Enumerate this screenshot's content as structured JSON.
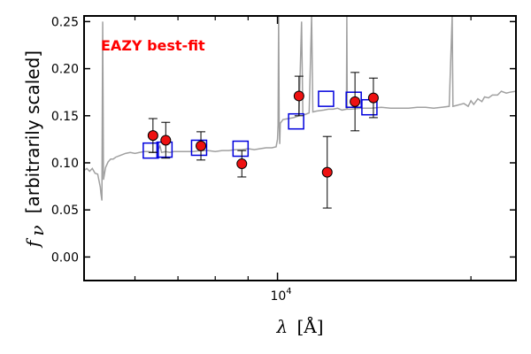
{
  "chart_data": {
    "type": "scatter",
    "annotation": "EAZY best-fit",
    "annotation_color": "#ff0000",
    "xlabel_symbol": "λ",
    "xlabel_unit": "[Å]",
    "ylabel_symbol": "f",
    "ylabel_subscript": "ν",
    "ylabel_text": "[arbitrarily scaled]",
    "x_scale": "log",
    "xlim": [
      5000,
      23500
    ],
    "ylim": [
      -0.025,
      0.256
    ],
    "x_major_tick": {
      "value": 10000,
      "base": "10",
      "exponent": "4"
    },
    "x_minor_ticks": [
      6000,
      7000,
      8000,
      9000,
      20000
    ],
    "y_ticks": [
      0.0,
      0.05,
      0.1,
      0.15,
      0.2,
      0.25
    ],
    "y_tick_labels": [
      "0.00",
      "0.05",
      "0.10",
      "0.15",
      "0.20",
      "0.25"
    ],
    "grid": false,
    "colors": {
      "sed": "#a0a0a0",
      "model_photometry": "#0000dd",
      "observed": "#ee1111",
      "errorbar": "#000000"
    },
    "series": [
      {
        "kind": "template_sed",
        "points": [
          [
            5000,
            0.092
          ],
          [
            5050,
            0.094
          ],
          [
            5100,
            0.091
          ],
          [
            5150,
            0.094
          ],
          [
            5200,
            0.089
          ],
          [
            5250,
            0.088
          ],
          [
            5300,
            0.074
          ],
          [
            5310,
            0.068
          ],
          [
            5330,
            0.06
          ],
          [
            5345,
            0.25
          ],
          [
            5360,
            0.082
          ],
          [
            5400,
            0.095
          ],
          [
            5450,
            0.101
          ],
          [
            5500,
            0.104
          ],
          [
            5550,
            0.104
          ],
          [
            5600,
            0.106
          ],
          [
            5700,
            0.108
          ],
          [
            5800,
            0.11
          ],
          [
            5900,
            0.111
          ],
          [
            6000,
            0.11
          ],
          [
            6100,
            0.111
          ],
          [
            6200,
            0.112
          ],
          [
            6300,
            0.112
          ],
          [
            6400,
            0.111
          ],
          [
            6500,
            0.112
          ],
          [
            6563,
            0.118
          ],
          [
            6600,
            0.111
          ],
          [
            6700,
            0.112
          ],
          [
            6800,
            0.111
          ],
          [
            6900,
            0.112
          ],
          [
            7000,
            0.112
          ],
          [
            7200,
            0.112
          ],
          [
            7400,
            0.112
          ],
          [
            7600,
            0.113
          ],
          [
            7800,
            0.113
          ],
          [
            8000,
            0.112
          ],
          [
            8200,
            0.113
          ],
          [
            8400,
            0.113
          ],
          [
            8600,
            0.114
          ],
          [
            8800,
            0.114
          ],
          [
            9000,
            0.115
          ],
          [
            9200,
            0.114
          ],
          [
            9400,
            0.115
          ],
          [
            9600,
            0.116
          ],
          [
            9800,
            0.116
          ],
          [
            9950,
            0.117
          ],
          [
            10000,
            0.125
          ],
          [
            10020,
            0.14
          ],
          [
            10040,
            0.256
          ],
          [
            10060,
            0.145
          ],
          [
            10080,
            0.12
          ],
          [
            10100,
            0.142
          ],
          [
            10200,
            0.146
          ],
          [
            10400,
            0.147
          ],
          [
            10600,
            0.148
          ],
          [
            10800,
            0.15
          ],
          [
            10900,
            0.25
          ],
          [
            10950,
            0.152
          ],
          [
            11000,
            0.151
          ],
          [
            11200,
            0.153
          ],
          [
            11300,
            0.256
          ],
          [
            11350,
            0.154
          ],
          [
            11500,
            0.155
          ],
          [
            11800,
            0.156
          ],
          [
            12000,
            0.157
          ],
          [
            12200,
            0.157
          ],
          [
            12400,
            0.158
          ],
          [
            12600,
            0.156
          ],
          [
            12800,
            0.157
          ],
          [
            12820,
            0.256
          ],
          [
            12840,
            0.157
          ],
          [
            13000,
            0.157
          ],
          [
            13500,
            0.158
          ],
          [
            14000,
            0.158
          ],
          [
            14500,
            0.159
          ],
          [
            15000,
            0.158
          ],
          [
            15500,
            0.158
          ],
          [
            16000,
            0.158
          ],
          [
            16500,
            0.159
          ],
          [
            17000,
            0.159
          ],
          [
            17500,
            0.158
          ],
          [
            18000,
            0.159
          ],
          [
            18500,
            0.16
          ],
          [
            18700,
            0.256
          ],
          [
            18750,
            0.16
          ],
          [
            19000,
            0.161
          ],
          [
            19500,
            0.163
          ],
          [
            19800,
            0.16
          ],
          [
            20000,
            0.166
          ],
          [
            20200,
            0.162
          ],
          [
            20500,
            0.168
          ],
          [
            20800,
            0.165
          ],
          [
            21000,
            0.17
          ],
          [
            21300,
            0.169
          ],
          [
            21600,
            0.172
          ],
          [
            22000,
            0.172
          ],
          [
            22300,
            0.176
          ],
          [
            22700,
            0.174
          ],
          [
            23000,
            0.175
          ],
          [
            23500,
            0.176
          ]
        ]
      },
      {
        "kind": "model_photometry",
        "points": [
          [
            6350,
            0.113
          ],
          [
            6670,
            0.114
          ],
          [
            7550,
            0.116
          ],
          [
            8760,
            0.115
          ],
          [
            10690,
            0.144
          ],
          [
            11900,
            0.168
          ],
          [
            13140,
            0.167
          ],
          [
            13900,
            0.159
          ]
        ]
      },
      {
        "kind": "observed_photometry",
        "points": [
          {
            "x": 6400,
            "y": 0.129,
            "err": 0.018
          },
          {
            "x": 6700,
            "y": 0.124,
            "err": 0.019
          },
          {
            "x": 7600,
            "y": 0.118,
            "err": 0.015
          },
          {
            "x": 8800,
            "y": 0.099,
            "err": 0.014
          },
          {
            "x": 10800,
            "y": 0.171,
            "err": 0.021
          },
          {
            "x": 11950,
            "y": 0.09,
            "err": 0.038
          },
          {
            "x": 13200,
            "y": 0.165,
            "err": 0.031
          },
          {
            "x": 14100,
            "y": 0.169,
            "err": 0.021
          }
        ]
      }
    ]
  }
}
